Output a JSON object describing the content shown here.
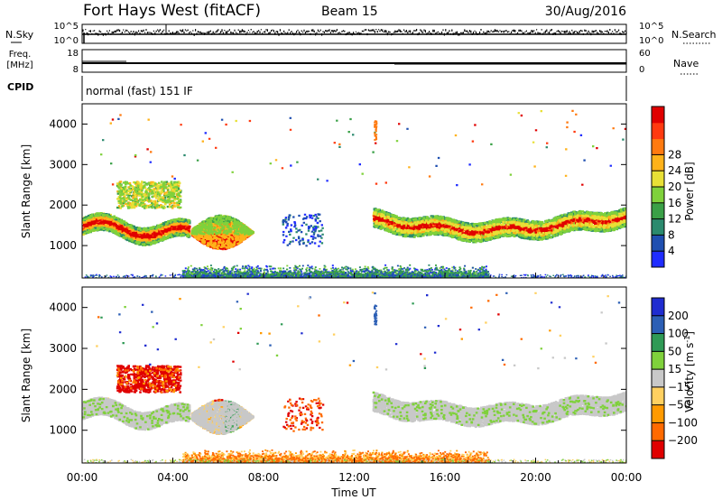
{
  "header": {
    "title": "Fort Hays West (fitACF)",
    "beam": "Beam 15",
    "date": "30/Aug/2016"
  },
  "top_panels": {
    "nsky": {
      "left_label": "N.Sky",
      "right_label": "N.Search",
      "ticks_left": [
        "10^5",
        "10^0"
      ],
      "ticks_right": [
        "10^5",
        "10^0"
      ]
    },
    "freq": {
      "left_label_1": "Freq.",
      "left_label_2": "[MHz]",
      "ticks_left": [
        "18",
        "8"
      ],
      "ticks_right": [
        "60",
        "0"
      ],
      "right_label": "Nave"
    },
    "cpid": {
      "label": "CPID",
      "text": "normal (fast) 151 IF"
    }
  },
  "colors": {
    "power": [
      "#1f2cff",
      "#1f4fb0",
      "#2b8a6e",
      "#3aa047",
      "#7fd13b",
      "#e8e036",
      "#ffb21a",
      "#ff7a10",
      "#ff3a10",
      "#e00000"
    ],
    "velocity": [
      "#e00000",
      "#ff6a00",
      "#ff9a00",
      "#ffd060",
      "#c8c8c8",
      "#7fd13b",
      "#2f9a55",
      "#2c5fb5",
      "#1f2cd0"
    ]
  },
  "chart_data": [
    {
      "type": "heatmap",
      "name": "power",
      "ylabel": "Slant Range [km]",
      "x_range": [
        "00:00",
        "24:00"
      ],
      "y_range": [
        200,
        4500
      ],
      "yticks": [
        "1000",
        "2000",
        "3000",
        "4000"
      ],
      "colorbar": {
        "label": "Power [dB]",
        "ticks": [
          "4",
          "8",
          "12",
          "16",
          "20",
          "24",
          "28"
        ],
        "range": [
          0,
          30
        ]
      },
      "scatter_regions": [
        {
          "t_start": 0.0,
          "t_end": 4.7,
          "range_km": [
            1100,
            2200
          ],
          "level": "high"
        },
        {
          "t_start": 4.8,
          "t_end": 7.5,
          "range_km": [
            900,
            1900
          ],
          "level": "high"
        },
        {
          "t_start": 12.8,
          "t_end": 24.0,
          "range_km": [
            1000,
            2100
          ],
          "level": "high"
        },
        {
          "t_start": 4.5,
          "t_end": 17.5,
          "range_km": [
            200,
            400
          ],
          "level": "low"
        }
      ]
    },
    {
      "type": "heatmap",
      "name": "velocity",
      "xlabel": "Time UT",
      "ylabel": "Slant Range [km]",
      "x_range": [
        "00:00",
        "24:00"
      ],
      "y_range": [
        200,
        4500
      ],
      "xticks": [
        "00:00",
        "04:00",
        "08:00",
        "12:00",
        "16:00",
        "20:00",
        "00:00"
      ],
      "yticks": [
        "1000",
        "2000",
        "3000",
        "4000"
      ],
      "colorbar": {
        "label": "Velocity [m s",
        "label_exp": "-1",
        "label_close": "]",
        "ticks": [
          "200",
          "100",
          "50",
          "15",
          "−15",
          "−50",
          "−100",
          "−200"
        ],
        "range": [
          -250,
          250
        ]
      }
    }
  ]
}
